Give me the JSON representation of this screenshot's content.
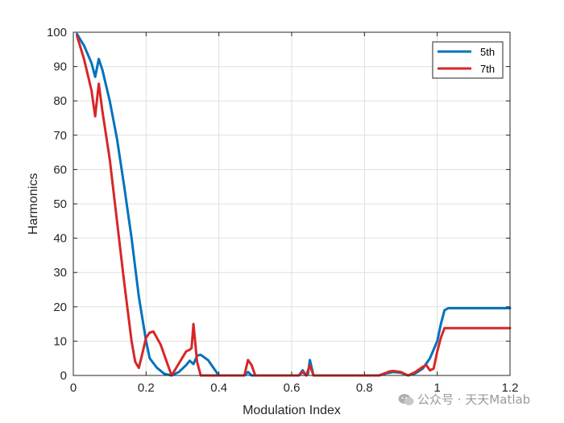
{
  "chart_data": {
    "type": "line",
    "title": "",
    "xlabel": "Modulation Index",
    "ylabel": "Harmonics",
    "xlim": [
      0,
      1.2
    ],
    "ylim": [
      0,
      100
    ],
    "xticks": [
      "0",
      "0.2",
      "0.4",
      "0.6",
      "0.8",
      "1",
      "1.2"
    ],
    "yticks": [
      "0",
      "10",
      "20",
      "30",
      "40",
      "50",
      "60",
      "70",
      "80",
      "90",
      "100"
    ],
    "grid": true,
    "legend_position": "top-right",
    "series": [
      {
        "name": "5th",
        "color": "#0072BD",
        "points": [
          [
            0.01,
            99.5
          ],
          [
            0.03,
            96
          ],
          [
            0.05,
            91
          ],
          [
            0.06,
            87
          ],
          [
            0.07,
            92.2
          ],
          [
            0.08,
            89
          ],
          [
            0.1,
            80
          ],
          [
            0.12,
            69
          ],
          [
            0.14,
            55
          ],
          [
            0.16,
            40
          ],
          [
            0.18,
            23
          ],
          [
            0.2,
            10
          ],
          [
            0.21,
            5
          ],
          [
            0.23,
            2.2
          ],
          [
            0.25,
            0.5
          ],
          [
            0.27,
            0
          ],
          [
            0.29,
            1
          ],
          [
            0.31,
            3
          ],
          [
            0.32,
            4.3
          ],
          [
            0.33,
            3.3
          ],
          [
            0.34,
            5.8
          ],
          [
            0.35,
            6
          ],
          [
            0.37,
            4.5
          ],
          [
            0.39,
            1.5
          ],
          [
            0.4,
            0
          ],
          [
            0.47,
            0
          ],
          [
            0.48,
            1
          ],
          [
            0.49,
            0
          ],
          [
            0.62,
            0
          ],
          [
            0.63,
            1.5
          ],
          [
            0.64,
            0
          ],
          [
            0.645,
            0.5
          ],
          [
            0.65,
            4.5
          ],
          [
            0.66,
            0
          ],
          [
            0.84,
            0
          ],
          [
            0.86,
            0.6
          ],
          [
            0.88,
            1
          ],
          [
            0.9,
            0.8
          ],
          [
            0.92,
            0
          ],
          [
            0.94,
            0.6
          ],
          [
            0.96,
            2
          ],
          [
            0.98,
            5
          ],
          [
            1.0,
            10
          ],
          [
            1.01,
            15
          ],
          [
            1.02,
            19
          ],
          [
            1.03,
            19.6
          ],
          [
            1.2,
            19.6
          ]
        ]
      },
      {
        "name": "7th",
        "color": "#D62728",
        "points": [
          [
            0.01,
            99
          ],
          [
            0.03,
            92
          ],
          [
            0.05,
            83
          ],
          [
            0.06,
            75.5
          ],
          [
            0.07,
            85
          ],
          [
            0.08,
            77
          ],
          [
            0.1,
            63
          ],
          [
            0.12,
            45
          ],
          [
            0.14,
            27
          ],
          [
            0.16,
            10
          ],
          [
            0.17,
            4
          ],
          [
            0.18,
            2.2
          ],
          [
            0.19,
            6.5
          ],
          [
            0.2,
            11
          ],
          [
            0.21,
            12.5
          ],
          [
            0.22,
            12.8
          ],
          [
            0.24,
            9
          ],
          [
            0.26,
            3
          ],
          [
            0.27,
            0
          ],
          [
            0.29,
            3.5
          ],
          [
            0.31,
            7
          ],
          [
            0.32,
            7.5
          ],
          [
            0.325,
            8
          ],
          [
            0.33,
            15
          ],
          [
            0.34,
            4
          ],
          [
            0.35,
            0
          ],
          [
            0.47,
            0
          ],
          [
            0.48,
            4.5
          ],
          [
            0.49,
            3
          ],
          [
            0.5,
            0
          ],
          [
            0.62,
            0
          ],
          [
            0.63,
            1
          ],
          [
            0.64,
            0
          ],
          [
            0.65,
            3
          ],
          [
            0.66,
            0
          ],
          [
            0.84,
            0
          ],
          [
            0.87,
            1.2
          ],
          [
            0.88,
            1.3
          ],
          [
            0.9,
            1
          ],
          [
            0.92,
            0
          ],
          [
            0.94,
            1
          ],
          [
            0.96,
            2.5
          ],
          [
            0.97,
            3
          ],
          [
            0.98,
            1.5
          ],
          [
            0.99,
            2
          ],
          [
            1.0,
            7
          ],
          [
            1.01,
            11
          ],
          [
            1.02,
            13.8
          ],
          [
            1.2,
            13.8
          ]
        ]
      }
    ]
  },
  "watermark": {
    "text": "公众号 · 天天Matlab",
    "icon": "wechat-icon"
  }
}
